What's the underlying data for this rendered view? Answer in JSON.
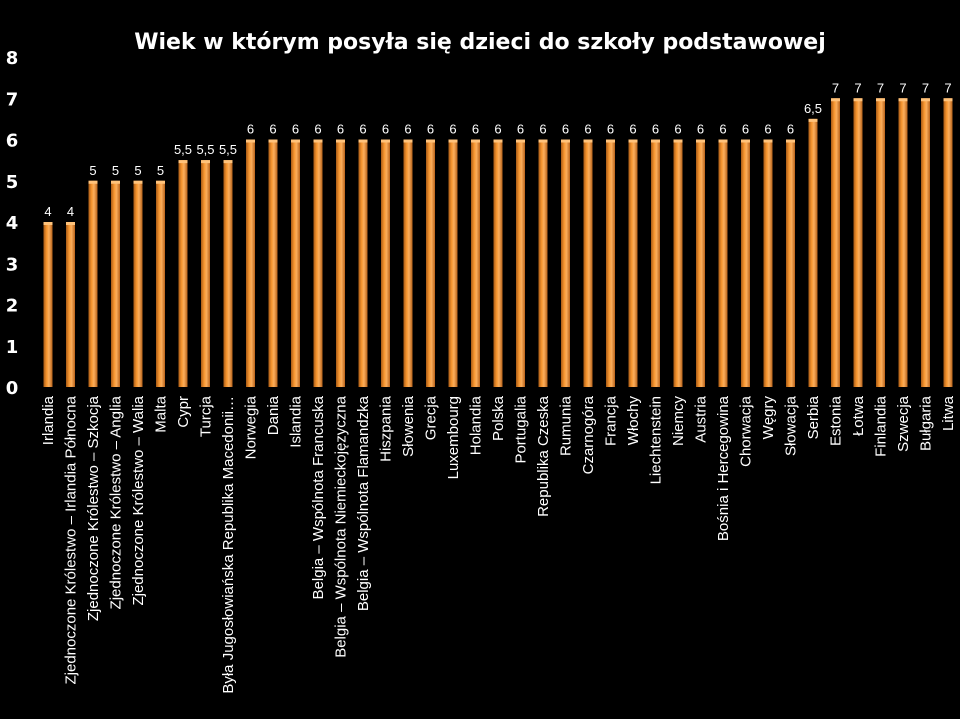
{
  "chart_data": {
    "type": "bar",
    "title": "Wiek w którym posyła się dzieci do szkoły podstawowej",
    "xlabel": "",
    "ylabel": "",
    "ylim": [
      0,
      8
    ],
    "yticks": [
      "0",
      "1",
      "2",
      "3",
      "4",
      "5",
      "6",
      "7",
      "8"
    ],
    "grid": false,
    "legend": "none",
    "bar_color": "#F7962F",
    "bar_dark": "#8A4A12",
    "background": "#000000",
    "categories": [
      "Irlandia",
      "Zjednoczone Królestwo – Irlandia Północna",
      "Zjednoczone Królestwo – Szkocja",
      "Zjednoczone Królestwo – Anglia",
      "Zjednoczone Królestwo – Walia",
      "Malta",
      "Cypr",
      "Turcja",
      "Była Jugosłowiańska Republika Macedonii…",
      "Norwegia",
      "Dania",
      "Islandia",
      "Belgia – Wspólnota Francuska",
      "Belgia – Wspólnota Niemieckojęzyczna",
      "Belgia – Wspólnota Flamandzka",
      "Hiszpania",
      "Słowenia",
      "Grecja",
      "Luxembourg",
      "Holandia",
      "Polska",
      "Portugalia",
      "Republika Czeska",
      "Rumunia",
      "Czarnogóra",
      "Francja",
      "Włochy",
      "Liechtenstein",
      "Niemcy",
      "Austria",
      "Bośnia i Hercegowina",
      "Chorwacja",
      "Węgry",
      "Słowacja",
      "Serbia",
      "Estonia",
      "Łotwa",
      "Finlandia",
      "Szwecja",
      "Bułgaria",
      "Litwa"
    ],
    "values": [
      4,
      4,
      5,
      5,
      5,
      5,
      5.5,
      5.5,
      5.5,
      6,
      6,
      6,
      6,
      6,
      6,
      6,
      6,
      6,
      6,
      6,
      6,
      6,
      6,
      6,
      6,
      6,
      6,
      6,
      6,
      6,
      6,
      6,
      6,
      6,
      6.5,
      7,
      7,
      7,
      7,
      7,
      7
    ],
    "data_labels": [
      "4",
      "4",
      "5",
      "5",
      "5",
      "5",
      "5,5",
      "5,5",
      "5,5",
      "6",
      "6",
      "6",
      "6",
      "6",
      "6",
      "6",
      "6",
      "6",
      "6",
      "6",
      "6",
      "6",
      "6",
      "6",
      "6",
      "6",
      "6",
      "6",
      "6",
      "6",
      "6",
      "6",
      "6",
      "6",
      "6,5",
      "7",
      "7",
      "7",
      "7",
      "7",
      "7"
    ]
  }
}
